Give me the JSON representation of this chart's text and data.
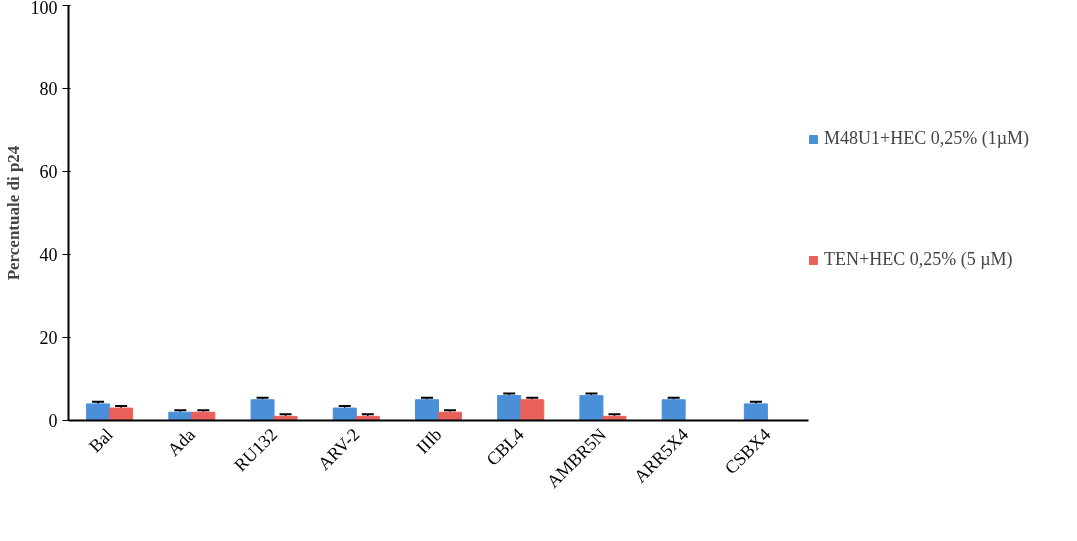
{
  "chart_data": {
    "type": "bar",
    "ylabel": "Percentuale di p24",
    "categories": [
      "Bal",
      "Ada",
      "RU132",
      "ARV-2",
      "IIIb",
      "CBL4",
      "AMBR5N",
      "ARR5X4",
      "CSBX4"
    ],
    "series": [
      {
        "name": "M48U1+HEC 0,25% (1µM)",
        "color": "#4a90d9",
        "values": [
          4,
          2,
          5,
          3,
          5,
          6,
          6,
          5,
          4
        ],
        "errors": [
          [
            4,
            4.5
          ],
          [
            2,
            2.5
          ],
          [
            5,
            5.5
          ],
          [
            3,
            3.5
          ],
          [
            5,
            5.5
          ],
          [
            6,
            6.5
          ],
          [
            6,
            6.5
          ],
          [
            5,
            5.5
          ],
          [
            4,
            4.5
          ]
        ]
      },
      {
        "name": "TEN+HEC 0,25% (5 µM)",
        "color": "#e8605a",
        "values": [
          3,
          2,
          1,
          1,
          2,
          5,
          1,
          null,
          null
        ],
        "errors": [
          [
            3,
            3.5
          ],
          [
            2,
            2.5
          ],
          [
            1,
            1.5
          ],
          [
            1,
            1.5
          ],
          [
            2,
            2.5
          ],
          [
            5,
            5.5
          ],
          [
            1,
            1.5
          ],
          null,
          null
        ]
      }
    ],
    "ylim": [
      0,
      100
    ],
    "yticks": [
      0,
      20,
      40,
      60,
      80,
      100
    ],
    "grid": false,
    "legend": "right"
  }
}
